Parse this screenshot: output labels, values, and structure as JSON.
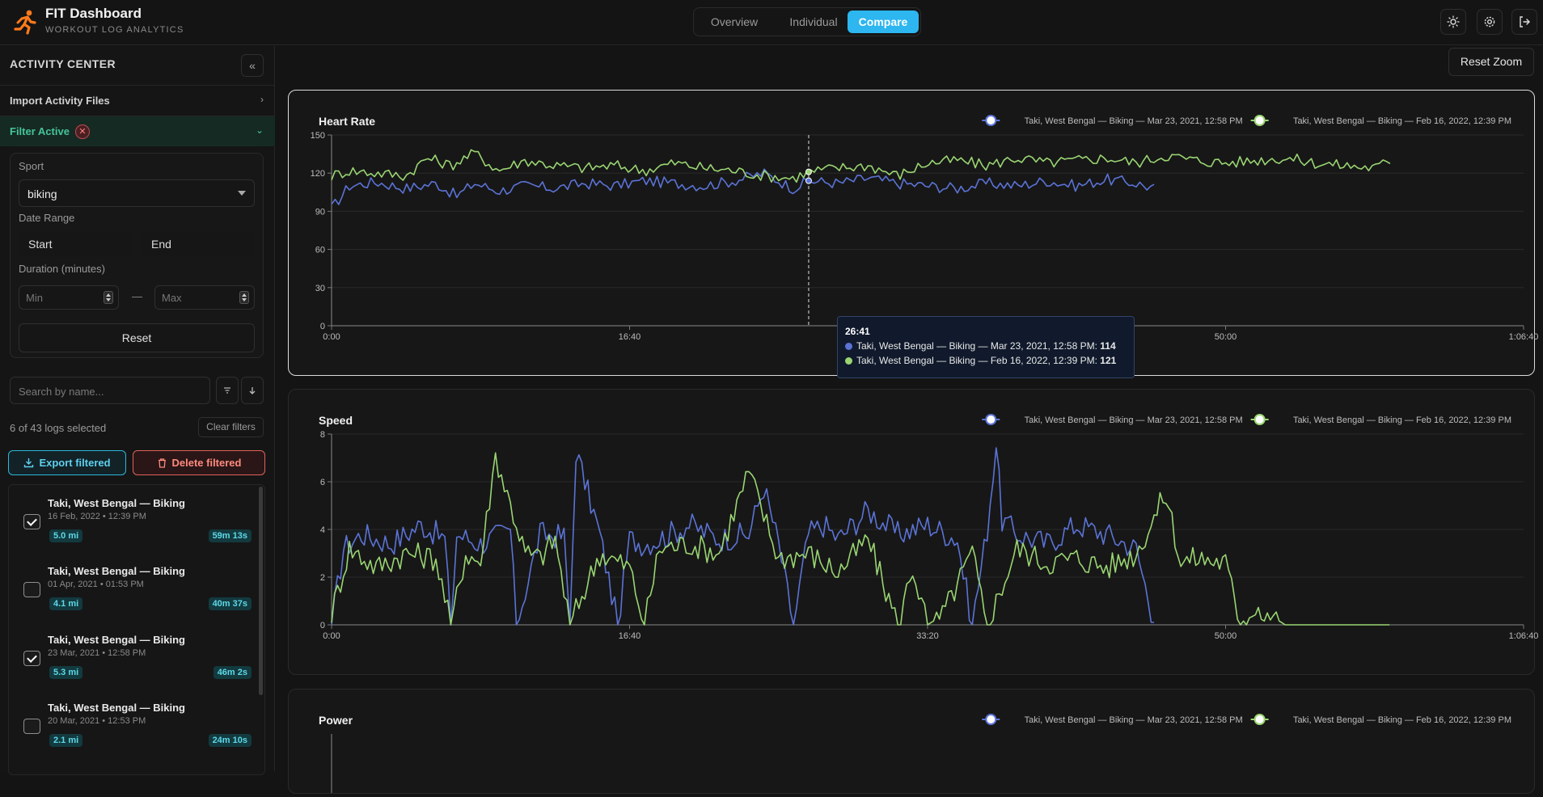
{
  "header": {
    "title": "FIT Dashboard",
    "subtitle": "WORKOUT LOG ANALYTICS",
    "tabs": [
      {
        "label": "Overview"
      },
      {
        "label": "Individual"
      },
      {
        "label": "Compare"
      }
    ],
    "active_tab": "Compare",
    "icons": [
      "sun-icon",
      "gear-icon",
      "logout-icon"
    ]
  },
  "sidebar": {
    "title": "ACTIVITY CENTER",
    "import_label": "Import Activity Files",
    "filter_label": "Filter Active",
    "filter": {
      "sport_label": "Sport",
      "sport_value": "biking",
      "date_label": "Date Range",
      "start_label": "Start",
      "end_label": "End",
      "duration_label": "Duration (minutes)",
      "min_placeholder": "Min",
      "max_placeholder": "Max",
      "dash": "—",
      "reset_label": "Reset"
    },
    "search_placeholder": "Search by name...",
    "selection_text": "6 of 43 logs selected",
    "clear_filters_label": "Clear filters",
    "export_label": "Export filtered",
    "delete_label": "Delete filtered",
    "logs": [
      {
        "title": "Taki, West Bengal — Biking",
        "date": "16 Feb, 2022 • 12:39 PM",
        "distance": "5.0 mi",
        "duration": "59m 13s",
        "checked": true
      },
      {
        "title": "Taki, West Bengal — Biking",
        "date": "01 Apr, 2021 • 01:53 PM",
        "distance": "4.1 mi",
        "duration": "40m 37s",
        "checked": false
      },
      {
        "title": "Taki, West Bengal — Biking",
        "date": "23 Mar, 2021 • 12:58 PM",
        "distance": "5.3 mi",
        "duration": "46m 2s",
        "checked": true
      },
      {
        "title": "Taki, West Bengal — Biking",
        "date": "20 Mar, 2021 • 12:53 PM",
        "distance": "2.1 mi",
        "duration": "24m 10s",
        "checked": false
      }
    ]
  },
  "main": {
    "reset_zoom_label": "Reset Zoom",
    "tooltip": {
      "time": "26:41",
      "rows": [
        {
          "label": "Taki, West Bengal — Biking — Mar 23, 2021, 12:58 PM: ",
          "value": "114",
          "color": "#5b73d6"
        },
        {
          "label": "Taki, West Bengal — Biking — Feb 16, 2022, 12:39 PM: ",
          "value": "121",
          "color": "#9ad572"
        }
      ]
    }
  },
  "colors": {
    "accent": "#2db6f0",
    "series_a": "#5b73d6",
    "series_b": "#9ad572",
    "filter_active": "#46c59a",
    "danger": "#e0625a"
  },
  "chart_data": [
    {
      "type": "line",
      "title": "Heart Rate",
      "xlabel": "",
      "ylabel": "",
      "x_unit": "seconds",
      "xlim": [
        0,
        4000
      ],
      "x_ticks": [
        "0:00",
        "16:40",
        "33:20",
        "50:00",
        "1:06:40"
      ],
      "ylim": [
        0,
        150
      ],
      "y_ticks": [
        0,
        30,
        60,
        90,
        120,
        150
      ],
      "grid": true,
      "legend": "top-right",
      "series": [
        {
          "name": "Taki, West Bengal — Biking — Mar 23, 2021, 12:58 PM",
          "color": "#5b73d6",
          "end": 2762,
          "x": [
            0,
            60,
            150,
            250,
            350,
            420,
            480,
            560,
            650,
            750,
            850,
            950,
            1050,
            1150,
            1250,
            1350,
            1450,
            1550,
            1601,
            1700,
            1800,
            1900,
            2000,
            2100,
            2200,
            2300,
            2400,
            2500,
            2600,
            2700,
            2762
          ],
          "values": [
            92,
            110,
            113,
            108,
            112,
            102,
            112,
            106,
            110,
            108,
            112,
            110,
            114,
            112,
            110,
            114,
            120,
            108,
            114,
            112,
            116,
            112,
            110,
            108,
            112,
            110,
            114,
            110,
            115,
            112,
            108
          ]
        },
        {
          "name": "Taki, West Bengal — Biking — Feb 16, 2022, 12:39 PM",
          "color": "#9ad572",
          "end": 3553,
          "x": [
            0,
            60,
            150,
            250,
            320,
            400,
            480,
            560,
            650,
            750,
            850,
            950,
            1050,
            1150,
            1250,
            1350,
            1450,
            1550,
            1601,
            1700,
            1800,
            1900,
            2000,
            2100,
            2200,
            2300,
            2400,
            2500,
            2600,
            2700,
            2800,
            2900,
            3000,
            3100,
            3200,
            3300,
            3400,
            3500,
            3553
          ],
          "values": [
            118,
            122,
            120,
            118,
            132,
            126,
            136,
            122,
            130,
            126,
            124,
            126,
            122,
            128,
            124,
            122,
            118,
            116,
            121,
            124,
            126,
            118,
            128,
            130,
            126,
            132,
            128,
            130,
            132,
            128,
            134,
            130,
            128,
            130,
            132,
            128,
            126,
            124,
            130
          ]
        }
      ]
    },
    {
      "type": "line",
      "title": "Speed",
      "xlabel": "",
      "ylabel": "",
      "x_unit": "seconds",
      "xlim": [
        0,
        4000
      ],
      "x_ticks": [
        "0:00",
        "16:40",
        "33:20",
        "50:00",
        "1:06:40"
      ],
      "ylim": [
        0,
        8
      ],
      "y_ticks": [
        0,
        2,
        4,
        6,
        8
      ],
      "grid": true,
      "legend": "top-right",
      "series": [
        {
          "name": "Taki, West Bengal — Biking — Mar 23, 2021, 12:58 PM",
          "color": "#5b73d6",
          "end": 2762,
          "x": [
            0,
            40,
            100,
            200,
            300,
            380,
            400,
            420,
            500,
            600,
            620,
            700,
            780,
            800,
            820,
            900,
            960,
            1000,
            1050,
            1100,
            1200,
            1300,
            1400,
            1450,
            1500,
            1550,
            1600,
            1650,
            1700,
            1800,
            1900,
            2000,
            2100,
            2150,
            2200,
            2230,
            2250,
            2300,
            2400,
            2500,
            2600,
            2700,
            2762
          ],
          "values": [
            0,
            3.2,
            3.8,
            3.4,
            4.2,
            3.6,
            0,
            3.8,
            3.4,
            4.0,
            0,
            3.8,
            3.7,
            0,
            7.3,
            3.8,
            0,
            3.6,
            3.4,
            3.6,
            4.2,
            3.6,
            3.8,
            5.8,
            3.4,
            0,
            3.8,
            4.2,
            3.6,
            4.8,
            3.8,
            4.2,
            3.6,
            0,
            4.0,
            7.6,
            4.4,
            3.8,
            3.4,
            4.2,
            3.8,
            3.2,
            0
          ]
        },
        {
          "name": "Taki, West Bengal — Biking — Feb 16, 2022, 12:39 PM",
          "color": "#9ad572",
          "end": 3553,
          "x": [
            0,
            60,
            150,
            250,
            350,
            400,
            450,
            500,
            550,
            650,
            700,
            750,
            800,
            900,
            1000,
            1050,
            1100,
            1200,
            1300,
            1400,
            1500,
            1600,
            1700,
            1800,
            1900,
            1950,
            2000,
            2050,
            2150,
            2200,
            2300,
            2400,
            2500,
            2600,
            2700,
            2800,
            2850,
            2900,
            3000,
            3050,
            3100,
            3200,
            3300,
            3553
          ],
          "values": [
            0.5,
            3.2,
            2.4,
            3.0,
            2.8,
            0,
            3.0,
            2.6,
            7.1,
            3.0,
            2.8,
            3.6,
            0,
            3.0,
            2.4,
            0,
            3.2,
            3.4,
            3.0,
            6.4,
            2.8,
            3.0,
            2.2,
            3.6,
            0,
            2.4,
            0,
            0.4,
            3.0,
            0,
            3.2,
            2.6,
            2.8,
            2.4,
            3.0,
            5.5,
            2.6,
            2.8,
            2.6,
            0,
            0.8,
            0,
            0,
            0
          ]
        }
      ]
    },
    {
      "type": "line",
      "title": "Power",
      "xlabel": "",
      "ylabel": "",
      "legend": "top-right",
      "series": [
        {
          "name": "Taki, West Bengal — Biking — Mar 23, 2021, 12:58 PM",
          "color": "#5b73d6"
        },
        {
          "name": "Taki, West Bengal — Biking — Feb 16, 2022, 12:39 PM",
          "color": "#9ad572"
        }
      ]
    }
  ]
}
